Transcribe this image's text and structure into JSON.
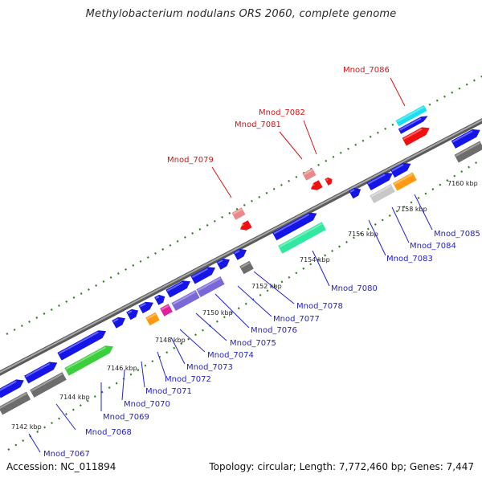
{
  "header": {
    "title": "Methylobacterium nodulans ORS 2060, complete genome"
  },
  "footer": {
    "accession": "Accession: NC_011894",
    "summary": "Topology: circular; Length: 7,772,460 bp; Genes: 7,447"
  },
  "colors": {
    "backbone": "#7f7f7f",
    "backbone_edge": "#5a5a5a",
    "tick": "#2e7d1f",
    "cds": "#1515e8",
    "pseudo_gray": "#6d6d6d",
    "light_gray": "#c8c8c8",
    "green": "#3ccf3c",
    "mint": "#30e8a0",
    "orange": "#ff9a12",
    "magenta": "#e0209a",
    "lavender": "#7a68d8",
    "red": "#f01010",
    "pink": "#e88a8a",
    "cyan": "#18e0f0",
    "label_blue": "#2222cc",
    "label_red": "#dd1111"
  },
  "scale": {
    "unit": "kbp",
    "ticks": [
      {
        "label": "7142 kbp"
      },
      {
        "label": "7144 kbp"
      },
      {
        "label": "7146 kbp"
      },
      {
        "label": "7148 kbp"
      },
      {
        "label": "7150 kbp"
      },
      {
        "label": "7152 kbp"
      },
      {
        "label": "7154 kbp"
      },
      {
        "label": "7156 kbp"
      },
      {
        "label": "7158 kbp"
      },
      {
        "label": "7160 kbp"
      }
    ]
  },
  "genes": {
    "bottom_labels": [
      {
        "name": "Mnod_7067"
      },
      {
        "name": "Mnod_7068"
      },
      {
        "name": "Mnod_7069"
      },
      {
        "name": "Mnod_7070"
      },
      {
        "name": "Mnod_7071"
      },
      {
        "name": "Mnod_7072"
      },
      {
        "name": "Mnod_7073"
      },
      {
        "name": "Mnod_7074"
      },
      {
        "name": "Mnod_7075"
      },
      {
        "name": "Mnod_7076"
      },
      {
        "name": "Mnod_7077"
      },
      {
        "name": "Mnod_7078"
      },
      {
        "name": "Mnod_7080"
      },
      {
        "name": "Mnod_7083"
      },
      {
        "name": "Mnod_7084"
      },
      {
        "name": "Mnod_7085"
      }
    ],
    "top_labels": [
      {
        "name": "Mnod_7079"
      },
      {
        "name": "Mnod_7081"
      },
      {
        "name": "Mnod_7082"
      },
      {
        "name": "Mnod_7086"
      }
    ]
  }
}
